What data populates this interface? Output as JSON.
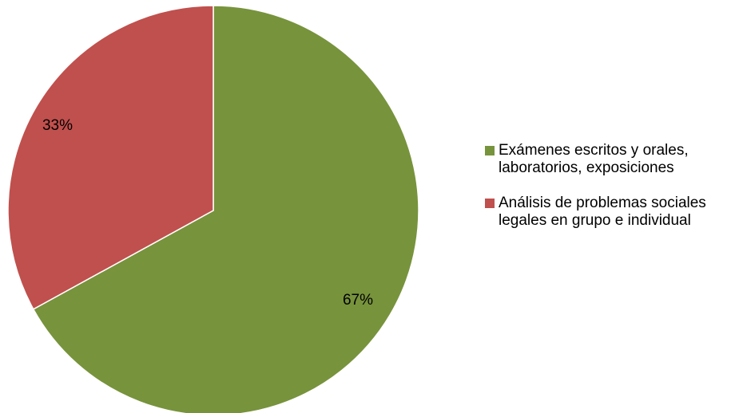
{
  "chart_data": {
    "type": "pie",
    "slices": [
      {
        "label": "Exámenes escritos y orales, laboratorios, exposiciones",
        "value": 67,
        "display": "67%",
        "color": "#77933C"
      },
      {
        "label": "Análisis de problemas sociales legales en grupo e individual",
        "value": 33,
        "display": "33%",
        "color": "#C0504D"
      }
    ],
    "start_angle": "12 o'clock",
    "direction": "clockwise",
    "legend_position": "right"
  }
}
